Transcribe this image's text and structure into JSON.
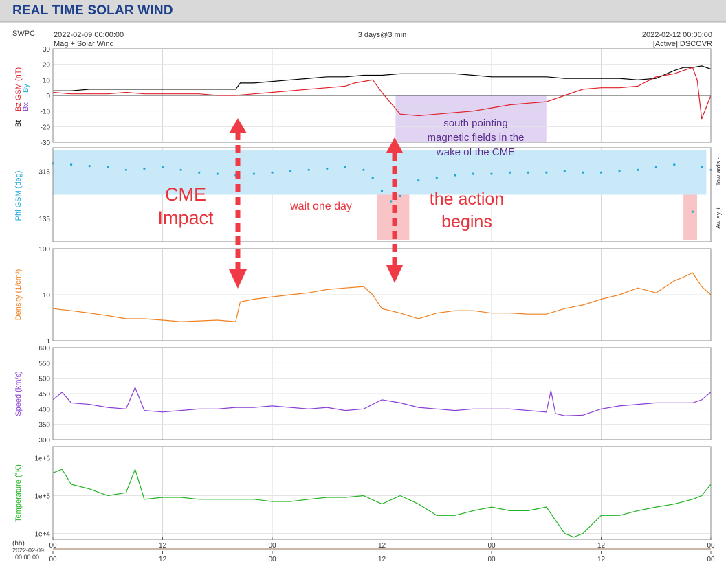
{
  "page": {
    "title": "REAL TIME SOLAR WIND"
  },
  "header": {
    "source": "SWPC",
    "start_time": "2022-02-09 00:00:00",
    "end_time": "2022-02-12 00:00:00",
    "span": "3 days@3 min",
    "product": "Mag + Solar Wind",
    "status": "[Active] DSCOVR"
  },
  "colors": {
    "bt": "#000000",
    "bz": "#e0202a",
    "phi": "#1aa7d8",
    "phi_band": "#c9e9f9",
    "away_band": "#f9c4c6",
    "bz_shade": "#d9c9ef",
    "density": "#f07f1e",
    "speed": "#8a3dd6",
    "temperature": "#22b322",
    "annot_red": "#e8333a",
    "annot_purple": "#5a2d8c"
  },
  "chart_data": [
    {
      "type": "line",
      "name": "mag",
      "ylabel_parts": [
        "Bt",
        "Bz GSM (nT)",
        "Bx",
        "By"
      ],
      "yticks": [
        "30",
        "20",
        "10",
        "0",
        "-10",
        "-20",
        "-30"
      ],
      "ylim": [
        -30,
        30
      ],
      "series": [
        {
          "name": "Bt",
          "x": [
            0,
            2,
            4,
            6,
            8,
            10,
            12,
            14,
            16,
            18,
            20,
            20.5,
            22,
            24,
            26,
            28,
            30,
            32,
            34,
            36,
            38,
            40,
            42,
            44,
            46,
            48,
            50,
            52,
            54,
            56,
            58,
            60,
            62,
            64,
            66,
            68,
            69,
            70,
            71,
            72
          ],
          "y": [
            3,
            3,
            4,
            4,
            4,
            4,
            4,
            4,
            4,
            4,
            4,
            8,
            8,
            9,
            10,
            11,
            12,
            12,
            13,
            13,
            14,
            14,
            14,
            14,
            13,
            12,
            12,
            12,
            12,
            11,
            11,
            11,
            11,
            10,
            11,
            16,
            18,
            18,
            19,
            17
          ]
        },
        {
          "name": "Bz",
          "x": [
            0,
            2,
            4,
            6,
            8,
            10,
            12,
            14,
            16,
            18,
            20,
            22,
            24,
            26,
            28,
            30,
            32,
            33,
            34,
            35,
            36,
            38,
            40,
            42,
            44,
            46,
            48,
            50,
            52,
            54,
            56,
            58,
            60,
            62,
            64,
            66,
            68,
            69,
            70,
            70.5,
            71,
            72
          ],
          "y": [
            2,
            1,
            1,
            1,
            2,
            1,
            1,
            1,
            1,
            0,
            0,
            1,
            2,
            3,
            4,
            5,
            6,
            8,
            9,
            10,
            2,
            -12,
            -13,
            -12,
            -11,
            -10,
            -8,
            -6,
            -5,
            -4,
            0,
            4,
            5,
            5,
            6,
            12,
            14,
            16,
            18,
            10,
            -15,
            0
          ]
        }
      ]
    },
    {
      "type": "scatter",
      "name": "phi",
      "ylabel": "Phi GSM (deg)",
      "yticks": [
        "315",
        "135"
      ],
      "right_labels": [
        "Tow ards -",
        "Aw ay +"
      ],
      "x": [
        0,
        2,
        4,
        6,
        8,
        10,
        12,
        14,
        16,
        18,
        20,
        22,
        24,
        26,
        28,
        30,
        32,
        34,
        35,
        36,
        37,
        38,
        40,
        42,
        44,
        46,
        48,
        50,
        52,
        54,
        56,
        58,
        60,
        62,
        64,
        66,
        68,
        70,
        71,
        72
      ],
      "y": [
        345,
        340,
        335,
        330,
        320,
        325,
        330,
        320,
        310,
        305,
        300,
        305,
        310,
        315,
        320,
        325,
        330,
        320,
        290,
        240,
        200,
        220,
        280,
        290,
        300,
        305,
        305,
        310,
        310,
        310,
        315,
        310,
        310,
        315,
        320,
        330,
        340,
        160,
        330,
        320
      ]
    },
    {
      "type": "line",
      "name": "density",
      "ylabel": "Density (1/cm³)",
      "yticks": [
        "100",
        "10",
        "1"
      ],
      "scale": "log",
      "ylim": [
        1,
        100
      ],
      "x": [
        0,
        2,
        4,
        6,
        8,
        10,
        12,
        14,
        16,
        18,
        20,
        20.5,
        22,
        24,
        26,
        28,
        30,
        32,
        34,
        35,
        36,
        38,
        40,
        42,
        44,
        46,
        48,
        50,
        52,
        54,
        56,
        58,
        60,
        62,
        64,
        66,
        68,
        69,
        70,
        71,
        72
      ],
      "y": [
        5,
        4.5,
        4,
        3.5,
        3,
        3,
        2.8,
        2.6,
        2.7,
        2.8,
        2.6,
        7,
        8,
        9,
        10,
        11,
        13,
        14,
        15,
        10,
        5,
        4,
        3,
        4,
        4.5,
        4.5,
        4,
        4,
        3.8,
        3.8,
        5,
        6,
        8,
        10,
        14,
        11,
        20,
        24,
        30,
        15,
        10
      ]
    },
    {
      "type": "line",
      "name": "speed",
      "ylabel": "Speed (km/s)",
      "yticks": [
        "600",
        "550",
        "500",
        "450",
        "400",
        "350",
        "300"
      ],
      "ylim": [
        300,
        600
      ],
      "x": [
        0,
        1,
        2,
        4,
        6,
        8,
        9,
        10,
        12,
        14,
        16,
        18,
        20,
        22,
        24,
        26,
        28,
        30,
        32,
        34,
        36,
        38,
        40,
        42,
        44,
        46,
        48,
        50,
        52,
        54,
        54.5,
        55,
        56,
        58,
        60,
        62,
        64,
        66,
        68,
        70,
        71,
        72
      ],
      "y": [
        430,
        455,
        420,
        415,
        405,
        400,
        470,
        395,
        390,
        395,
        400,
        400,
        405,
        405,
        410,
        405,
        400,
        405,
        395,
        400,
        430,
        420,
        405,
        400,
        395,
        400,
        400,
        400,
        395,
        390,
        460,
        385,
        378,
        380,
        400,
        410,
        415,
        420,
        420,
        420,
        430,
        455
      ]
    },
    {
      "type": "line",
      "name": "temperature",
      "ylabel": "Temperature (°K)",
      "yticks": [
        "1e+6",
        "1e+5",
        "1e+4"
      ],
      "scale": "log",
      "ylim": [
        7000,
        2000000
      ],
      "x": [
        0,
        1,
        2,
        4,
        6,
        8,
        9,
        10,
        12,
        14,
        16,
        18,
        20,
        22,
        24,
        26,
        28,
        30,
        32,
        34,
        36,
        38,
        40,
        42,
        44,
        46,
        48,
        50,
        52,
        54,
        56,
        57,
        58,
        60,
        62,
        64,
        66,
        68,
        70,
        71,
        72
      ],
      "y": [
        400000,
        500000,
        200000,
        150000,
        100000,
        120000,
        500000,
        80000,
        90000,
        90000,
        80000,
        80000,
        80000,
        80000,
        70000,
        70000,
        80000,
        90000,
        90000,
        100000,
        60000,
        100000,
        60000,
        30000,
        30000,
        40000,
        50000,
        40000,
        40000,
        50000,
        10000,
        8000,
        10000,
        30000,
        30000,
        40000,
        50000,
        60000,
        80000,
        100000,
        200000
      ]
    }
  ],
  "xaxis": {
    "label": "(hh)",
    "date_label": "2022-02-09",
    "time_label": "00:00:00",
    "ticks": [
      "00",
      "12",
      "00",
      "12",
      "00",
      "12",
      "00"
    ],
    "tick_hours": [
      0,
      12,
      24,
      36,
      48,
      60,
      72
    ]
  },
  "annotations": {
    "impact_line1": "CME",
    "impact_line2": "Impact",
    "wait": "wait one day",
    "action_line1": "the action",
    "action_line2": "begins",
    "south_line1": "south pointing",
    "south_line2": "magnetic fields in the",
    "south_line3": "wake of the CME"
  }
}
